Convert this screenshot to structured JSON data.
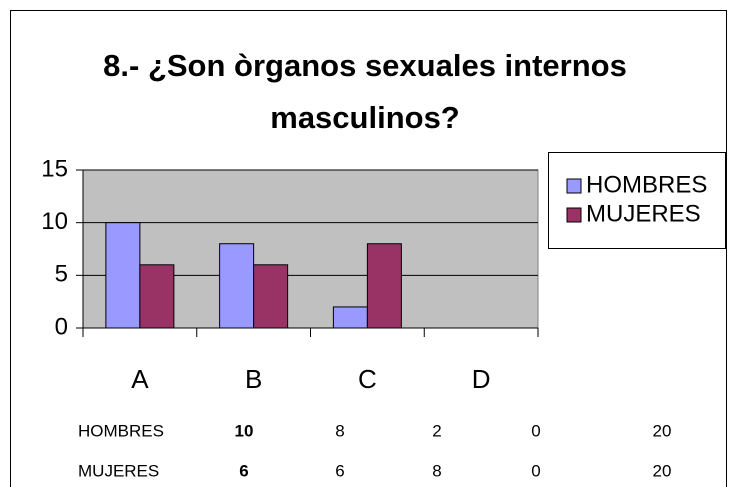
{
  "chart_data": {
    "type": "bar",
    "title": "8.- ¿Son òrganos sexuales internos masculinos?",
    "categories": [
      "A",
      "B",
      "C",
      "D"
    ],
    "series": [
      {
        "name": "HOMBRES",
        "color": "#9999ff",
        "values": [
          10,
          8,
          2,
          0
        ]
      },
      {
        "name": "MUJERES",
        "color": "#993366",
        "values": [
          6,
          6,
          8,
          0
        ]
      }
    ],
    "ylim": [
      0,
      15
    ],
    "yticks": [
      0,
      5,
      10,
      15
    ],
    "grid": true,
    "legend": "right"
  },
  "table": {
    "rows": [
      [
        "HOMBRES",
        10,
        8,
        2,
        0,
        20
      ],
      [
        "MUJERES",
        6,
        6,
        8,
        0,
        20
      ]
    ]
  }
}
